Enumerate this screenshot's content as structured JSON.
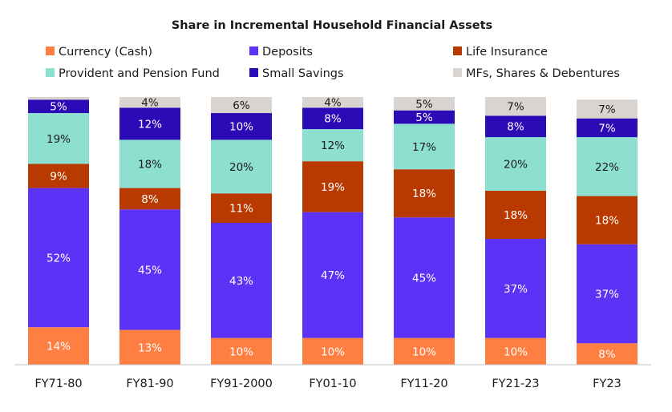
{
  "chart_data": {
    "type": "bar",
    "stacked": true,
    "title": "Share in Incremental Household Financial Assets",
    "xlabel": "",
    "ylabel": "",
    "ylim": [
      0,
      100
    ],
    "grid": false,
    "legend_position": "top",
    "categories": [
      "FY71-80",
      "FY81-90",
      "FY91-2000",
      "FY01-10",
      "FY11-20",
      "FY21-23",
      "FY23"
    ],
    "series": [
      {
        "name": "Currency (Cash)",
        "color": "#FF7E42",
        "label_color": "#ffffff",
        "values": [
          14,
          13,
          10,
          10,
          10,
          10,
          8
        ],
        "labels": [
          "14%",
          "13%",
          "10%",
          "10%",
          "10%",
          "10%",
          "8%"
        ]
      },
      {
        "name": "Deposits",
        "color": "#5C33F6",
        "label_color": "#ffffff",
        "values": [
          52,
          45,
          43,
          47,
          45,
          37,
          37
        ],
        "labels": [
          "52%",
          "45%",
          "43%",
          "47%",
          "45%",
          "37%",
          "37%"
        ]
      },
      {
        "name": "Life Insurance",
        "color": "#B83A00",
        "label_color": "#ffffff",
        "values": [
          9,
          8,
          11,
          19,
          18,
          18,
          18
        ],
        "labels": [
          "9%",
          "8%",
          "11%",
          "19%",
          "18%",
          "18%",
          "18%"
        ]
      },
      {
        "name": "Provident and Pension Fund",
        "color": "#8DDFCF",
        "label_color": "#1a1a1a",
        "values": [
          19,
          18,
          20,
          12,
          17,
          20,
          22
        ],
        "labels": [
          "19%",
          "18%",
          "20%",
          "12%",
          "17%",
          "20%",
          "22%"
        ]
      },
      {
        "name": "Small Savings",
        "color": "#2B0BB5",
        "label_color": "#ffffff",
        "values": [
          5,
          12,
          10,
          8,
          5,
          8,
          7
        ],
        "labels": [
          "5%",
          "12%",
          "10%",
          "8%",
          "5%",
          "8%",
          "7%"
        ]
      },
      {
        "name": "MFs, Shares & Debentures",
        "color": "#D9D4CF",
        "label_color": "#1a1a1a",
        "values": [
          1,
          4,
          6,
          4,
          5,
          7,
          7
        ],
        "labels": [
          "",
          "4%",
          "6%",
          "4%",
          "5%",
          "7%",
          "7%"
        ]
      }
    ]
  }
}
